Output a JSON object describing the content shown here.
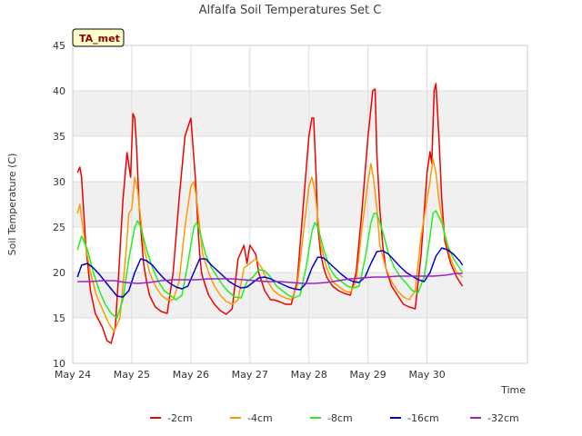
{
  "chart_data": {
    "type": "line",
    "title": "Alfalfa Soil Temperatures Set C",
    "xlabel": "Time",
    "ylabel": "Soil Temperature (C)",
    "site_label": "TA_met",
    "xlim": [
      0,
      7.7
    ],
    "ylim": [
      10,
      45
    ],
    "yticks": [
      10,
      15,
      20,
      25,
      30,
      35,
      40,
      45
    ],
    "x_ticks": [
      {
        "x": 0,
        "label": "May 24"
      },
      {
        "x": 1,
        "label": "May 25"
      },
      {
        "x": 2,
        "label": "May 26"
      },
      {
        "x": 3,
        "label": "May 27"
      },
      {
        "x": 4,
        "label": "May 28"
      },
      {
        "x": 5,
        "label": "May 29"
      },
      {
        "x": 6,
        "label": "May 30"
      }
    ],
    "x_unit": "days since May 24 00:00",
    "background_bands": "alternating light gray every 5 C",
    "grid": true,
    "legend_position": "bottom",
    "series": [
      {
        "name": "-2cm",
        "color": "#ee0000",
        "x": [
          0.08,
          0.12,
          0.15,
          0.22,
          0.3,
          0.38,
          0.5,
          0.58,
          0.65,
          0.72,
          0.78,
          0.85,
          0.92,
          0.98,
          1.0,
          1.02,
          1.05,
          1.08,
          1.12,
          1.15,
          1.2,
          1.25,
          1.3,
          1.35,
          1.4,
          1.5,
          1.6,
          1.7,
          1.8,
          1.9,
          2.0,
          2.08,
          2.12,
          2.15,
          2.18,
          2.2,
          2.25,
          2.3,
          2.4,
          2.5,
          2.6,
          2.7,
          2.8,
          2.9,
          2.95,
          3.0,
          3.05,
          3.1,
          3.15,
          3.2,
          3.25,
          3.3,
          3.35,
          3.4,
          3.5,
          3.6,
          3.7,
          3.8,
          3.9,
          4.0,
          4.05,
          4.08,
          4.12,
          4.15,
          4.2,
          4.25,
          4.3,
          4.4,
          4.5,
          4.6,
          4.7,
          4.8,
          4.9,
          5.0,
          5.08,
          5.12,
          5.15,
          5.2,
          5.25,
          5.3,
          5.4,
          5.5,
          5.6,
          5.7,
          5.8,
          5.9,
          6.0,
          6.05,
          6.08,
          6.12,
          6.15,
          6.2,
          6.25,
          6.3,
          6.4,
          6.5,
          6.6
        ],
        "values": [
          31,
          31.6,
          30.5,
          23,
          18,
          15.5,
          14,
          12.5,
          12.2,
          14,
          20,
          28,
          33.2,
          30.5,
          34,
          37.5,
          37,
          34,
          28,
          25,
          21,
          19,
          17.5,
          16.8,
          16.2,
          15.7,
          15.5,
          20,
          28,
          35,
          37,
          30,
          25,
          22,
          20,
          19.5,
          18.5,
          17.5,
          16.5,
          15.8,
          15.4,
          16,
          21.5,
          23,
          21,
          23,
          22.5,
          22,
          20,
          19,
          18,
          17.5,
          17,
          17,
          16.8,
          16.5,
          16.5,
          19,
          27,
          35,
          37,
          37,
          31,
          25,
          22,
          20.5,
          19.5,
          18.5,
          18,
          17.7,
          17.5,
          20,
          27,
          35,
          40,
          40.2,
          33,
          27,
          23,
          20.5,
          18.5,
          17.5,
          16.5,
          16.2,
          16,
          22,
          31,
          33.3,
          32,
          40,
          40.8,
          35,
          28,
          23.5,
          21,
          19.5,
          18.5
        ]
      },
      {
        "name": "-4cm",
        "color": "#ff9900",
        "x": [
          0.08,
          0.12,
          0.2,
          0.3,
          0.4,
          0.5,
          0.6,
          0.7,
          0.8,
          0.9,
          0.95,
          1.0,
          1.05,
          1.1,
          1.15,
          1.2,
          1.3,
          1.4,
          1.5,
          1.6,
          1.7,
          1.8,
          1.9,
          2.0,
          2.05,
          2.1,
          2.15,
          2.2,
          2.3,
          2.4,
          2.5,
          2.6,
          2.7,
          2.8,
          2.9,
          3.0,
          3.1,
          3.2,
          3.3,
          3.4,
          3.5,
          3.6,
          3.7,
          3.8,
          3.9,
          4.0,
          4.05,
          4.1,
          4.15,
          4.2,
          4.3,
          4.4,
          4.5,
          4.6,
          4.7,
          4.8,
          4.9,
          5.0,
          5.05,
          5.1,
          5.15,
          5.2,
          5.3,
          5.4,
          5.5,
          5.6,
          5.7,
          5.8,
          5.9,
          6.0,
          6.05,
          6.1,
          6.15,
          6.2,
          6.3,
          6.4,
          6.5,
          6.6
        ],
        "values": [
          26.5,
          27.5,
          23.5,
          20,
          17.5,
          16,
          14.5,
          13.5,
          15,
          22,
          26.5,
          27,
          30.5,
          29,
          26,
          23,
          20,
          18.5,
          17.5,
          17,
          17,
          19,
          25,
          29.5,
          30,
          28,
          25,
          22,
          20,
          18.5,
          17.5,
          16.8,
          16.5,
          17,
          20.5,
          21,
          21.5,
          20.5,
          19,
          18,
          17.5,
          17.2,
          17,
          18.5,
          24,
          29.5,
          30.5,
          29,
          26,
          23,
          20.5,
          19,
          18.5,
          18,
          17.8,
          19,
          25,
          30,
          32,
          30,
          27,
          23,
          20.5,
          19,
          18,
          17.3,
          17,
          18,
          24,
          28,
          30,
          32.5,
          31,
          28,
          24,
          21.5,
          20,
          19.5
        ]
      },
      {
        "name": "-8cm",
        "color": "#22ee22",
        "x": [
          0.08,
          0.15,
          0.25,
          0.35,
          0.45,
          0.55,
          0.65,
          0.75,
          0.85,
          0.95,
          1.05,
          1.1,
          1.15,
          1.25,
          1.35,
          1.45,
          1.55,
          1.65,
          1.75,
          1.85,
          1.95,
          2.05,
          2.1,
          2.15,
          2.25,
          2.35,
          2.45,
          2.55,
          2.65,
          2.75,
          2.85,
          2.95,
          3.05,
          3.15,
          3.25,
          3.35,
          3.45,
          3.55,
          3.65,
          3.75,
          3.85,
          3.95,
          4.05,
          4.1,
          4.15,
          4.25,
          4.35,
          4.45,
          4.55,
          4.65,
          4.75,
          4.85,
          4.95,
          5.05,
          5.1,
          5.15,
          5.25,
          5.35,
          5.45,
          5.55,
          5.65,
          5.75,
          5.85,
          5.95,
          6.05,
          6.1,
          6.15,
          6.25,
          6.35,
          6.45,
          6.55,
          6.6
        ],
        "values": [
          22.5,
          24,
          22.5,
          20,
          18,
          16.5,
          15.5,
          15,
          17,
          21.5,
          25,
          25.7,
          25,
          22.5,
          20.5,
          19,
          18,
          17.5,
          17,
          17.5,
          21,
          25,
          25.5,
          24.5,
          22,
          20.5,
          19.5,
          18.5,
          17.8,
          17.3,
          17.2,
          19,
          19.5,
          20.3,
          20.2,
          19.5,
          18.5,
          18,
          17.5,
          17.2,
          17.5,
          20.5,
          24.5,
          25.5,
          25,
          22.5,
          20.5,
          19.5,
          19,
          18.5,
          18.3,
          18.5,
          21.5,
          25.5,
          26.5,
          26.5,
          24.5,
          22,
          20.5,
          19.5,
          18.8,
          18,
          17.8,
          19.5,
          24,
          26.5,
          26.8,
          25.5,
          23,
          21.5,
          20.5,
          20
        ]
      },
      {
        "name": "-16cm",
        "color": "#0000cc",
        "x": [
          0.08,
          0.15,
          0.25,
          0.35,
          0.45,
          0.55,
          0.65,
          0.75,
          0.85,
          0.95,
          1.05,
          1.15,
          1.25,
          1.35,
          1.45,
          1.55,
          1.65,
          1.75,
          1.85,
          1.95,
          2.05,
          2.15,
          2.25,
          2.35,
          2.45,
          2.55,
          2.65,
          2.75,
          2.85,
          2.95,
          3.05,
          3.15,
          3.25,
          3.35,
          3.45,
          3.55,
          3.65,
          3.75,
          3.85,
          3.95,
          4.05,
          4.15,
          4.25,
          4.35,
          4.45,
          4.55,
          4.65,
          4.75,
          4.85,
          4.95,
          5.05,
          5.15,
          5.25,
          5.35,
          5.45,
          5.55,
          5.65,
          5.75,
          5.85,
          5.95,
          6.05,
          6.15,
          6.25,
          6.35,
          6.45,
          6.55,
          6.6
        ],
        "values": [
          19.5,
          20.8,
          21,
          20.5,
          19.8,
          19,
          18.2,
          17.4,
          17.3,
          18,
          20,
          21.5,
          21.3,
          20.8,
          20,
          19.3,
          18.8,
          18.4,
          18.2,
          18.5,
          20,
          21.5,
          21.5,
          20.8,
          20.2,
          19.6,
          19,
          18.6,
          18.3,
          18.4,
          18.9,
          19.4,
          19.5,
          19.3,
          19,
          18.7,
          18.4,
          18.2,
          18.1,
          18.8,
          20.5,
          21.7,
          21.6,
          21,
          20.4,
          19.8,
          19.3,
          19,
          18.9,
          19.5,
          21,
          22.3,
          22.4,
          22,
          21.3,
          20.6,
          20,
          19.6,
          19.2,
          19,
          20,
          21.8,
          22.7,
          22.5,
          22,
          21.3,
          20.8
        ]
      },
      {
        "name": "-32cm",
        "color": "#9922cc",
        "x": [
          0.08,
          0.3,
          0.5,
          0.7,
          0.9,
          1.1,
          1.3,
          1.5,
          1.7,
          1.9,
          2.1,
          2.3,
          2.5,
          2.7,
          2.9,
          3.1,
          3.3,
          3.5,
          3.7,
          3.9,
          4.1,
          4.3,
          4.5,
          4.7,
          4.9,
          5.1,
          5.3,
          5.5,
          5.7,
          5.9,
          6.1,
          6.3,
          6.5,
          6.6
        ],
        "values": [
          19,
          19,
          19.1,
          19.1,
          18.9,
          18.8,
          18.9,
          19.1,
          19.2,
          19.2,
          19.2,
          19.3,
          19.3,
          19.3,
          19.2,
          19.1,
          19,
          19,
          18.9,
          18.8,
          18.8,
          18.9,
          19.1,
          19.3,
          19.4,
          19.5,
          19.5,
          19.6,
          19.6,
          19.6,
          19.6,
          19.7,
          19.9,
          19.9
        ]
      }
    ]
  }
}
